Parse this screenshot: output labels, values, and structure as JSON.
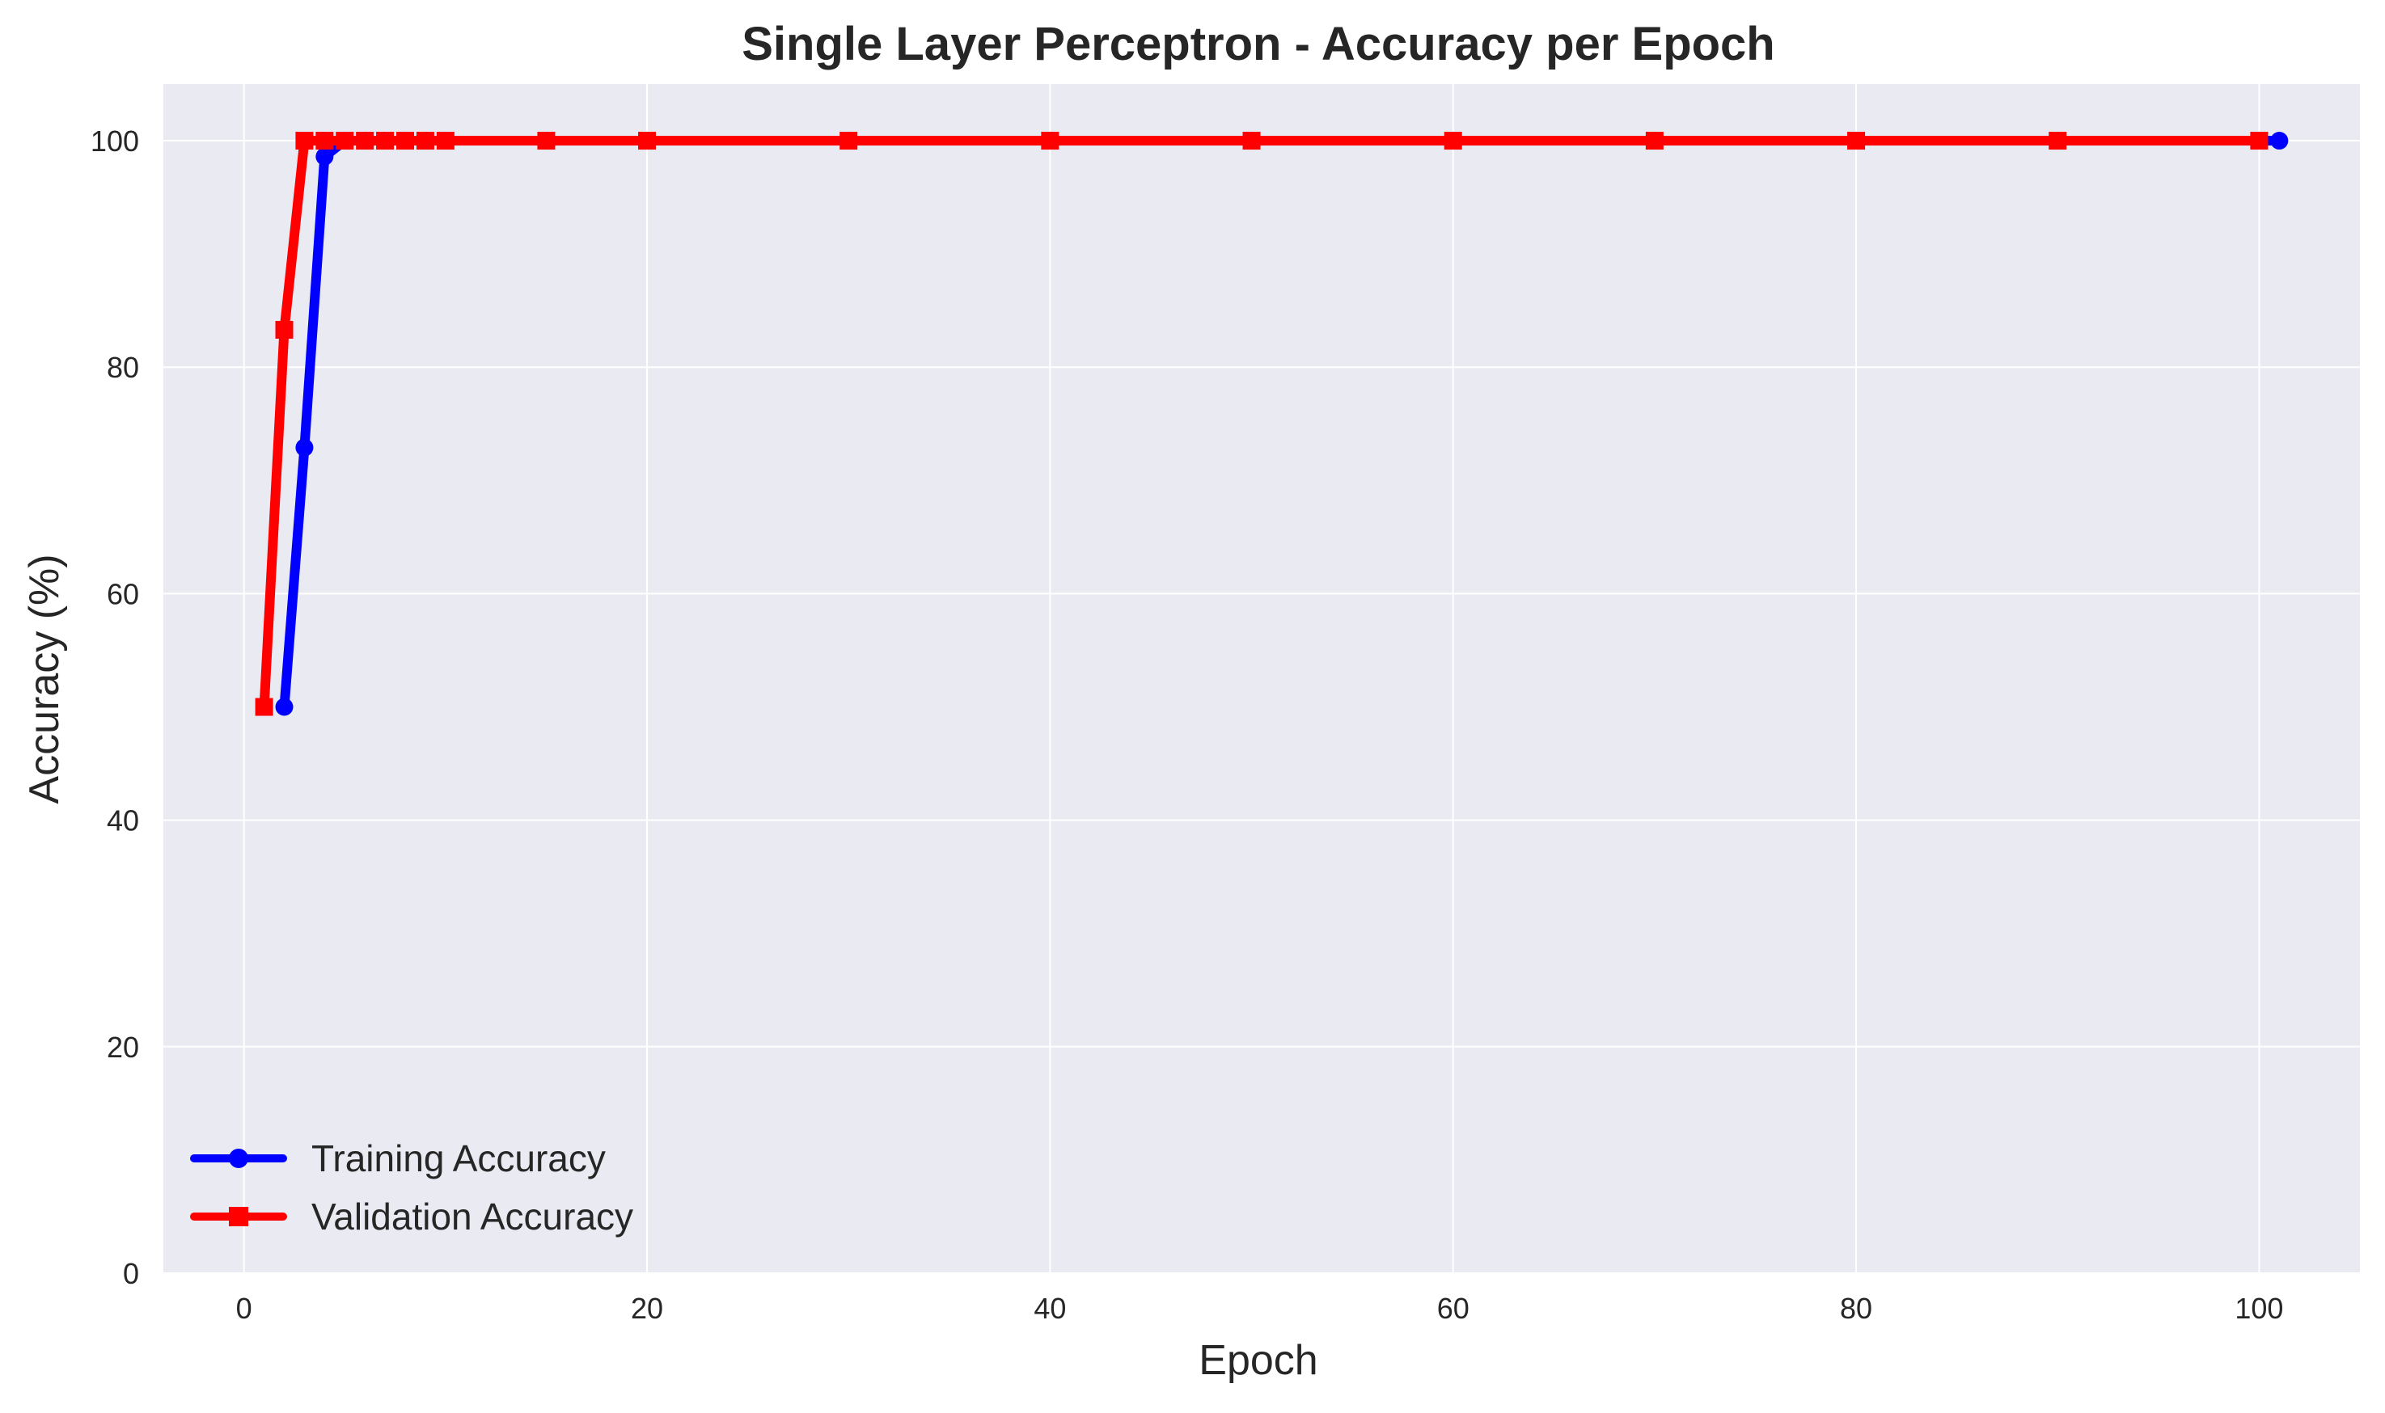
{
  "chart_data": {
    "type": "line",
    "title": "Single Layer Perceptron - Accuracy per Epoch",
    "xlabel": "Epoch",
    "ylabel": "Accuracy (%)",
    "xlim": [
      -4,
      105
    ],
    "ylim": [
      0,
      105
    ],
    "x_ticks": [
      0,
      20,
      40,
      60,
      80,
      100
    ],
    "y_ticks": [
      0,
      20,
      40,
      60,
      80,
      100
    ],
    "grid": true,
    "legend_position": "lower-left",
    "background_color": "#eaeaf2",
    "grid_color": "#ffffff",
    "series": [
      {
        "name": "Training Accuracy",
        "color": "#0000ff",
        "marker": "circle",
        "x": [
          2,
          3,
          4,
          5,
          6,
          7,
          8,
          9,
          10,
          15,
          20,
          30,
          40,
          50,
          60,
          70,
          80,
          90,
          100,
          101
        ],
        "y": [
          50.0,
          72.9,
          98.6,
          100,
          100,
          100,
          100,
          100,
          100,
          100,
          100,
          100,
          100,
          100,
          100,
          100,
          100,
          100,
          100,
          100
        ]
      },
      {
        "name": "Validation Accuracy",
        "color": "#ff0000",
        "marker": "square",
        "x": [
          1,
          2,
          3,
          4,
          5,
          6,
          7,
          8,
          9,
          10,
          15,
          20,
          30,
          40,
          50,
          60,
          70,
          80,
          90,
          100
        ],
        "y": [
          50.0,
          83.3,
          100,
          100,
          100,
          100,
          100,
          100,
          100,
          100,
          100,
          100,
          100,
          100,
          100,
          100,
          100,
          100,
          100,
          100
        ]
      }
    ]
  }
}
